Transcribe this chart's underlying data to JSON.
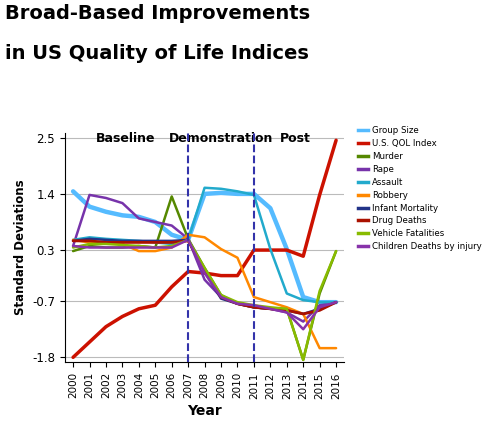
{
  "title_line1": "Broad-Based Improvements",
  "title_line2": "in US Quality of Life Indices",
  "xlabel": "Year",
  "ylabel": "Standard Deviations",
  "years": [
    2000,
    2001,
    2002,
    2003,
    2004,
    2005,
    2006,
    2007,
    2008,
    2009,
    2010,
    2011,
    2012,
    2013,
    2014,
    2015,
    2016
  ],
  "ylim": [
    -1.9,
    2.6
  ],
  "yticks": [
    -1.8,
    -0.7,
    0.3,
    1.4,
    2.5
  ],
  "vline1": 2007,
  "vline2": 2011,
  "baseline_label": "Baseline",
  "demo_label": "Demonstration",
  "post_label": "Post",
  "series": {
    "Group Size": {
      "color": "#55BBFF",
      "linewidth": 3.2,
      "values": [
        1.45,
        1.15,
        1.05,
        0.98,
        0.95,
        0.85,
        0.6,
        0.5,
        1.4,
        1.42,
        1.4,
        1.4,
        1.12,
        0.32,
        -0.62,
        -0.72,
        -0.72
      ]
    },
    "U.S. QOL Index": {
      "color": "#CC1100",
      "linewidth": 2.5,
      "values": [
        -1.8,
        -1.5,
        -1.2,
        -1.0,
        -0.85,
        -0.78,
        -0.42,
        -0.12,
        -0.15,
        -0.2,
        -0.2,
        0.3,
        0.3,
        0.3,
        0.18,
        1.38,
        2.45
      ]
    },
    "Murder": {
      "color": "#558800",
      "linewidth": 1.8,
      "values": [
        0.28,
        0.38,
        0.35,
        0.35,
        0.38,
        0.35,
        1.35,
        0.52,
        -0.05,
        -0.58,
        -0.75,
        -0.82,
        -0.85,
        -0.85,
        -1.85,
        -0.55,
        0.28
      ]
    },
    "Rape": {
      "color": "#7733AA",
      "linewidth": 1.8,
      "values": [
        0.38,
        1.38,
        1.32,
        1.22,
        0.92,
        0.85,
        0.78,
        0.52,
        -0.28,
        -0.62,
        -0.75,
        -0.82,
        -0.85,
        -0.92,
        -1.1,
        -0.78,
        -0.72
      ]
    },
    "Assault": {
      "color": "#22AACC",
      "linewidth": 1.8,
      "values": [
        0.5,
        0.55,
        0.52,
        0.5,
        0.48,
        0.45,
        0.42,
        0.5,
        1.52,
        1.5,
        1.45,
        1.38,
        0.32,
        -0.55,
        -0.68,
        -0.72,
        -0.72
      ]
    },
    "Robbery": {
      "color": "#FF8800",
      "linewidth": 1.8,
      "values": [
        0.5,
        0.45,
        0.45,
        0.42,
        0.28,
        0.28,
        0.35,
        0.6,
        0.55,
        0.32,
        0.15,
        -0.62,
        -0.72,
        -0.82,
        -0.95,
        -1.62,
        -1.62
      ]
    },
    "Infant Mortality": {
      "color": "#223388",
      "linewidth": 1.8,
      "values": [
        0.48,
        0.52,
        0.5,
        0.48,
        0.48,
        0.48,
        0.48,
        0.5,
        -0.12,
        -0.65,
        -0.75,
        -0.82,
        -0.85,
        -0.88,
        -0.95,
        -0.85,
        -0.72
      ]
    },
    "Drug Deaths": {
      "color": "#AA1100",
      "linewidth": 2.0,
      "values": [
        0.48,
        0.48,
        0.45,
        0.45,
        0.45,
        0.45,
        0.45,
        0.48,
        -0.08,
        -0.62,
        -0.75,
        -0.82,
        -0.85,
        -0.88,
        -0.95,
        -0.88,
        -0.72
      ]
    },
    "Vehicle Fatalities": {
      "color": "#88BB00",
      "linewidth": 1.8,
      "values": [
        0.35,
        0.42,
        0.42,
        0.4,
        0.38,
        0.35,
        0.38,
        0.5,
        -0.05,
        -0.58,
        -0.72,
        -0.78,
        -0.82,
        -0.85,
        -1.85,
        -0.5,
        0.28
      ]
    },
    "Children Deaths by injury": {
      "color": "#8833AA",
      "linewidth": 1.8,
      "values": [
        0.38,
        0.35,
        0.35,
        0.35,
        0.35,
        0.35,
        0.35,
        0.5,
        -0.15,
        -0.62,
        -0.75,
        -0.78,
        -0.85,
        -0.92,
        -1.25,
        -0.82,
        -0.72
      ]
    }
  },
  "legend_order": [
    "Group Size",
    "U.S. QOL Index",
    "Murder",
    "Rape",
    "Assault",
    "Robbery",
    "Infant Mortality",
    "Drug Deaths",
    "Vehicle Fatalities",
    "Children Deaths by injury"
  ],
  "legend_colors": {
    "Group Size": "#55BBFF",
    "U.S. QOL Index": "#CC1100",
    "Murder": "#558800",
    "Rape": "#7733AA",
    "Assault": "#22AACC",
    "Robbery": "#FF8800",
    "Infant Mortality": "#223388",
    "Drug Deaths": "#AA1100",
    "Vehicle Fatalities": "#88BB00",
    "Children Deaths by injury": "#8833AA"
  }
}
